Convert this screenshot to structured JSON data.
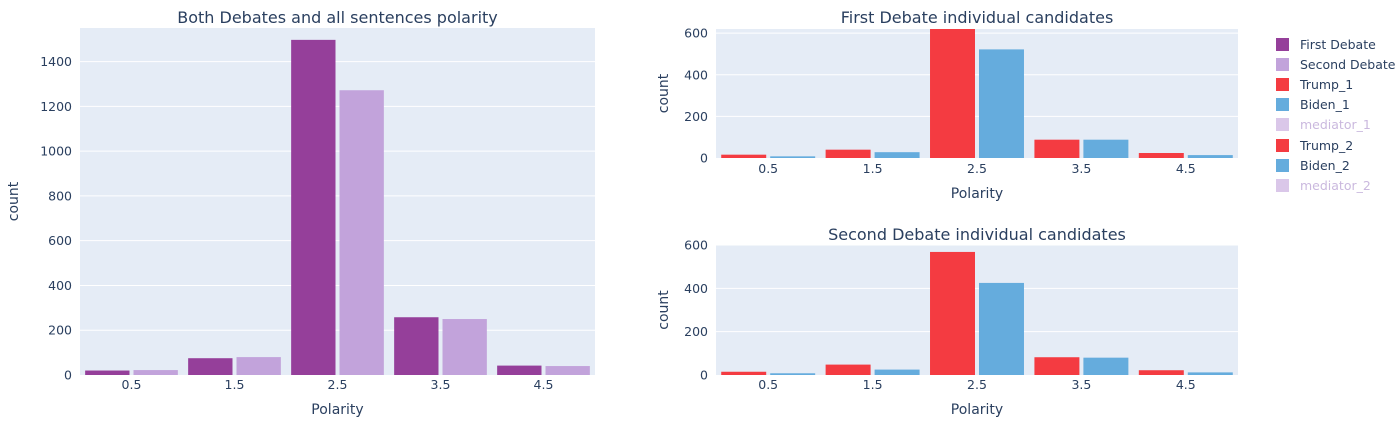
{
  "colors": {
    "first_debate": "#953f9a",
    "second_debate": "#c2a3db",
    "trump": "#f43b41",
    "biden": "#65acdd",
    "mediator": "#c2a3db",
    "plot_bg": "#e5ecf6",
    "text": "#2a3f5f"
  },
  "chart_data": [
    {
      "id": "both",
      "type": "bar",
      "title": "Both Debates and all sentences polarity",
      "xlabel": "Polarity",
      "ylabel": "count",
      "categories": [
        "0.5",
        "1.5",
        "2.5",
        "3.5",
        "4.5"
      ],
      "yticks": [
        0,
        200,
        400,
        600,
        800,
        1000,
        1200,
        1400
      ],
      "ylim": [
        0,
        1550
      ],
      "grid": true,
      "series": [
        {
          "name": "First Debate",
          "color": "#953f9a",
          "values": [
            20,
            75,
            1497,
            258,
            42
          ]
        },
        {
          "name": "Second Debate",
          "color": "#c2a3db",
          "values": [
            22,
            80,
            1272,
            250,
            40
          ]
        }
      ]
    },
    {
      "id": "first",
      "type": "bar",
      "title": "First Debate individual candidates",
      "xlabel": "Polarity",
      "ylabel": "count",
      "categories": [
        "0.5",
        "1.5",
        "2.5",
        "3.5",
        "4.5"
      ],
      "yticks": [
        0,
        200,
        400,
        600
      ],
      "ylim": [
        0,
        620
      ],
      "grid": true,
      "series": [
        {
          "name": "Trump_1",
          "color": "#f43b41",
          "values": [
            16,
            40,
            620,
            88,
            24
          ]
        },
        {
          "name": "Biden_1",
          "color": "#65acdd",
          "values": [
            8,
            28,
            522,
            88,
            14
          ]
        }
      ]
    },
    {
      "id": "second",
      "type": "bar",
      "title": "Second Debate individual candidates",
      "xlabel": "Polarity",
      "ylabel": "count",
      "categories": [
        "0.5",
        "1.5",
        "2.5",
        "3.5",
        "4.5"
      ],
      "yticks": [
        0,
        200,
        400,
        600
      ],
      "ylim": [
        0,
        600
      ],
      "grid": true,
      "series": [
        {
          "name": "Trump_2",
          "color": "#f43b41",
          "values": [
            15,
            48,
            568,
            82,
            22
          ]
        },
        {
          "name": "Biden_2",
          "color": "#65acdd",
          "values": [
            8,
            25,
            425,
            80,
            12
          ]
        }
      ]
    }
  ],
  "legend": {
    "position": "right",
    "items": [
      {
        "label": "First Debate",
        "color": "#953f9a",
        "dim": false
      },
      {
        "label": "Second Debate",
        "color": "#c2a3db",
        "dim": false
      },
      {
        "label": "Trump_1",
        "color": "#f43b41",
        "dim": false
      },
      {
        "label": "Biden_1",
        "color": "#65acdd",
        "dim": false
      },
      {
        "label": "mediator_1",
        "color": "#c2a3db",
        "dim": true
      },
      {
        "label": "Trump_2",
        "color": "#f43b41",
        "dim": false
      },
      {
        "label": "Biden_2",
        "color": "#65acdd",
        "dim": false
      },
      {
        "label": "mediator_2",
        "color": "#c2a3db",
        "dim": true
      }
    ]
  }
}
